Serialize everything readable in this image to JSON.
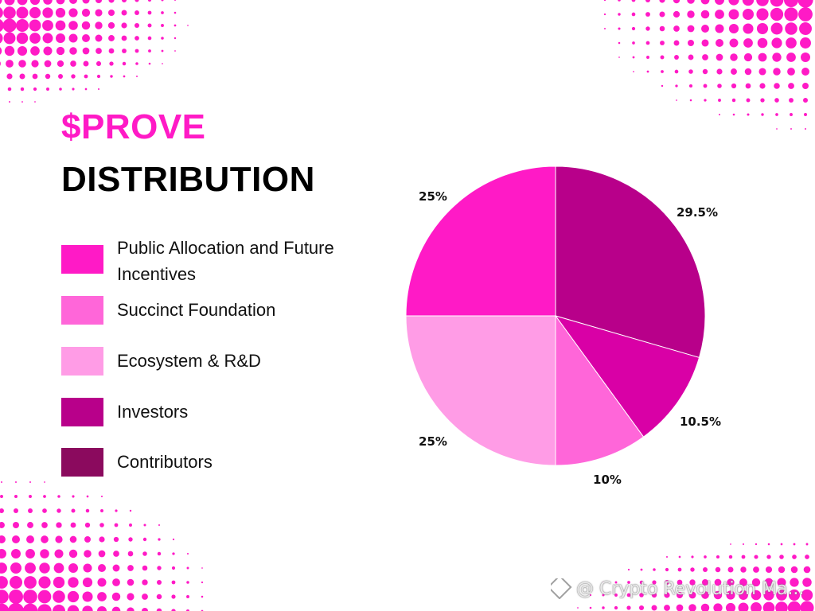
{
  "header": {
    "title_token": "$PROVE",
    "title_subject": "DISTRIBUTION"
  },
  "legend": [
    {
      "label": "Public Allocation and Future Incentives",
      "color": "#ff1ac6"
    },
    {
      "label": "Succinct Foundation",
      "color": "#ff66d9"
    },
    {
      "label": "Ecosystem & R&D",
      "color": "#ff9ce6"
    },
    {
      "label": "Investors",
      "color": "#b8008a"
    },
    {
      "label": "Contributors",
      "color": "#8b0a5e"
    }
  ],
  "chart_data": {
    "type": "pie",
    "slices": [
      {
        "label": "29.5%",
        "value": 29.5,
        "color": "#b8008a"
      },
      {
        "label": "10.5%",
        "value": 10.5,
        "color": "#d900a6"
      },
      {
        "label": "10%",
        "value": 10,
        "color": "#ff66d9"
      },
      {
        "label": "25%",
        "value": 25,
        "color": "#ff9ce6"
      },
      {
        "label": "25%",
        "value": 25,
        "color": "#ff1ac6"
      }
    ],
    "start_angle": "12 o'clock",
    "direction": "clockwise",
    "legend_position": "left"
  },
  "watermark": {
    "text": "@ Crypto Revolution Ma..."
  },
  "theme": {
    "accent": "#ff1ac6",
    "dots": "#ff1ac6"
  }
}
